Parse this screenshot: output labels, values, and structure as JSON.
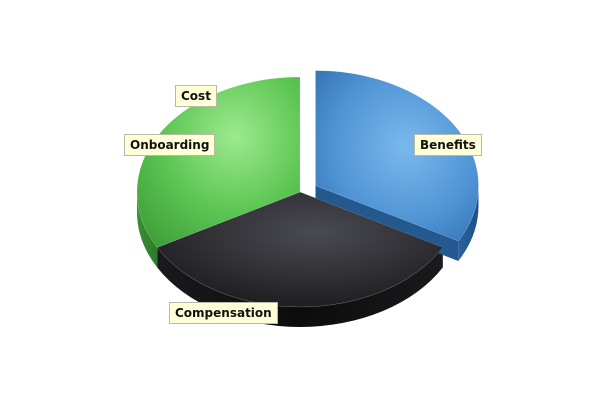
{
  "chart_data": {
    "type": "pie",
    "title": "",
    "style": "3d-exploded",
    "slices": [
      {
        "label": "Benefits",
        "value": 33,
        "color": "#3f88cc",
        "exploded": true
      },
      {
        "label": "Compensation",
        "value": 34,
        "color": "#222226",
        "exploded": false
      },
      {
        "label": "Onboarding",
        "value": 0,
        "color": "#57c455",
        "exploded": false
      },
      {
        "label": "Cost",
        "value": 33,
        "color": "#57c455",
        "exploded": false
      }
    ],
    "legend": "none"
  }
}
